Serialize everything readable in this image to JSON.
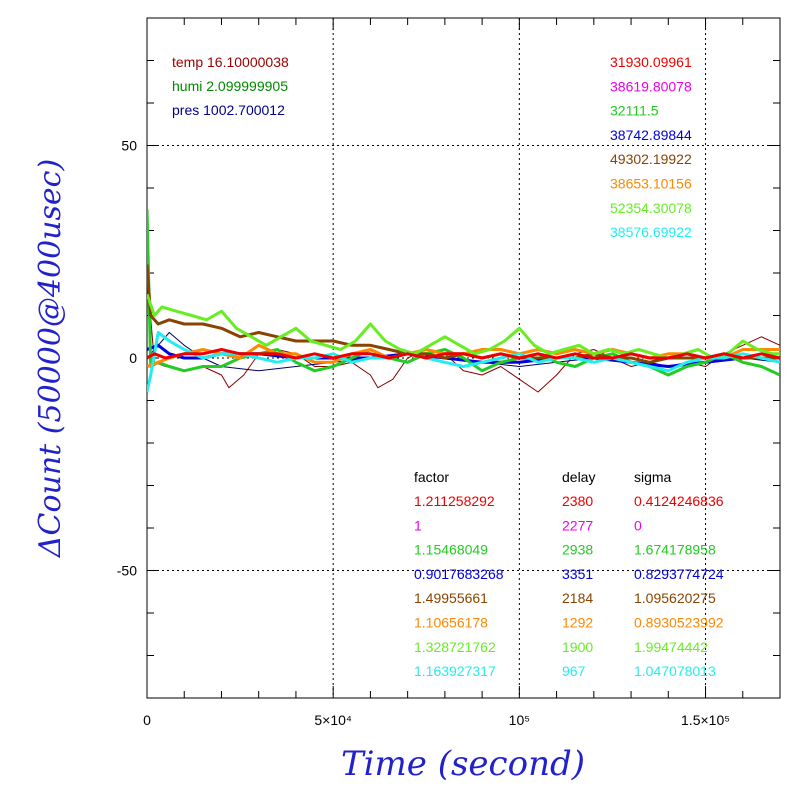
{
  "chart_data": {
    "type": "line",
    "xlabel": "Time (second)",
    "ylabel": "ΔCount (50000@400usec)",
    "xlim": [
      0,
      170000
    ],
    "ylim": [
      -80,
      80
    ],
    "grid": true,
    "x_ticks": [
      {
        "value": 0,
        "label": "0"
      },
      {
        "value": 50000,
        "label": "5×10⁴"
      },
      {
        "value": 100000,
        "label": "10⁵"
      },
      {
        "value": 150000,
        "label": "1.5×10⁵"
      }
    ],
    "y_ticks": [
      {
        "value": -50,
        "label": "-50"
      },
      {
        "value": 0,
        "label": "0"
      },
      {
        "value": 50,
        "label": "50"
      }
    ],
    "env_labels": [
      {
        "text": "temp 16.10000038",
        "color": "#990000"
      },
      {
        "text": "humi 2.099999905",
        "color": "#008800"
      },
      {
        "text": "pres 1002.700012",
        "color": "#000088"
      }
    ],
    "series_values": [
      {
        "text": "31930.09961",
        "color": "#ee0000"
      },
      {
        "text": "38619.80078",
        "color": "#ee00ee"
      },
      {
        "text": "32111.5",
        "color": "#22cc22"
      },
      {
        "text": "38742.89844",
        "color": "#0000dd"
      },
      {
        "text": "49302.19922",
        "color": "#884400"
      },
      {
        "text": "38653.10156",
        "color": "#ff8800"
      },
      {
        "text": "52354.30078",
        "color": "#66ee22"
      },
      {
        "text": "38576.69922",
        "color": "#22eeee"
      }
    ],
    "table": {
      "headers": [
        "factor",
        "delay",
        "sigma"
      ],
      "rows": [
        {
          "factor": "1.211258292",
          "delay": "2380",
          "sigma": "0.4124246836",
          "color": "#ee0000"
        },
        {
          "factor": "1",
          "delay": "2277",
          "sigma": "0",
          "color": "#ee00ee"
        },
        {
          "factor": "1.15468049",
          "delay": "2938",
          "sigma": "1.674178958",
          "color": "#22cc22"
        },
        {
          "factor": "0.9017683268",
          "delay": "3351",
          "sigma": "0.8293774724",
          "color": "#0000dd"
        },
        {
          "factor": "1.49955661",
          "delay": "2184",
          "sigma": "1.095620275",
          "color": "#884400"
        },
        {
          "factor": "1.10656178",
          "delay": "1292",
          "sigma": "0.8930523992",
          "color": "#ff8800"
        },
        {
          "factor": "1.328721762",
          "delay": "1900",
          "sigma": "1.99474442",
          "color": "#66ee22"
        },
        {
          "factor": "1.163927317",
          "delay": "967",
          "sigma": "1.047078013",
          "color": "#22eeee"
        }
      ]
    },
    "series": [
      {
        "color": "#880000",
        "width": 1,
        "x": [
          0,
          2000,
          5000,
          10000,
          15000,
          20000,
          22000,
          26000,
          30000,
          35000,
          40000,
          45000,
          50000,
          55000,
          60000,
          62000,
          66000,
          70000,
          75000,
          80000,
          85000,
          90000,
          95000,
          100000,
          105000,
          110000,
          115000,
          120000,
          125000,
          130000,
          135000,
          140000,
          145000,
          150000,
          155000,
          160000,
          165000,
          170000
        ],
        "y": [
          20,
          -1,
          -2,
          -3,
          -2,
          -4,
          -7,
          -4,
          1,
          2,
          1,
          -2,
          -2,
          -1,
          -4,
          -7,
          -5,
          0,
          2,
          1,
          -3,
          -4,
          -2,
          -5,
          -8,
          -4,
          1,
          2,
          0,
          -2,
          -1,
          -2,
          -1,
          -2,
          1,
          3,
          5,
          3
        ]
      },
      {
        "color": "#000066",
        "width": 1,
        "x": [
          0,
          3000,
          6000,
          10000,
          15000,
          20000,
          30000,
          40000,
          50000,
          60000,
          70000,
          80000,
          90000,
          100000,
          110000,
          120000,
          130000,
          140000,
          150000,
          160000,
          170000
        ],
        "y": [
          0,
          3,
          6,
          3,
          0,
          -2,
          -3,
          -2,
          -1,
          0,
          1,
          0,
          -1,
          -2,
          -1,
          0,
          -1,
          -2,
          -1,
          0,
          -1
        ]
      },
      {
        "color": "#0000dd",
        "width": 3,
        "x": [
          0,
          3000,
          6000,
          10000,
          15000,
          20000,
          30000,
          40000,
          50000,
          60000,
          70000,
          80000,
          90000,
          100000,
          110000,
          120000,
          130000,
          140000,
          150000,
          160000,
          170000
        ],
        "y": [
          2,
          3,
          1,
          0,
          0,
          1,
          1,
          0,
          0,
          0,
          1,
          0,
          -1,
          -1,
          0,
          0,
          -1,
          -2,
          -1,
          0,
          0
        ]
      },
      {
        "color": "#22cc22",
        "width": 3,
        "x": [
          0,
          1000,
          3000,
          6000,
          10000,
          15000,
          20000,
          25000,
          30000,
          35000,
          40000,
          45000,
          50000,
          55000,
          60000,
          65000,
          70000,
          75000,
          80000,
          85000,
          90000,
          95000,
          100000,
          105000,
          110000,
          115000,
          120000,
          125000,
          130000,
          135000,
          140000,
          145000,
          150000,
          155000,
          160000,
          165000,
          170000
        ],
        "y": [
          35,
          -2,
          -1,
          -2,
          -3,
          -2,
          -2,
          0,
          1,
          2,
          -1,
          -3,
          -2,
          0,
          2,
          0,
          -1,
          1,
          2,
          0,
          -3,
          -1,
          0,
          1,
          -1,
          -2,
          0,
          1,
          -1,
          -2,
          -4,
          -2,
          -1,
          1,
          -1,
          -2,
          -4
        ]
      },
      {
        "color": "#884400",
        "width": 3,
        "x": [
          0,
          1000,
          3000,
          6000,
          10000,
          15000,
          20000,
          25000,
          30000,
          35000,
          40000,
          45000,
          50000,
          55000,
          60000,
          65000,
          70000,
          75000,
          80000,
          85000,
          90000,
          95000,
          100000,
          105000,
          110000,
          115000,
          120000,
          125000,
          130000,
          135000,
          140000,
          145000,
          150000,
          155000,
          160000,
          165000,
          170000
        ],
        "y": [
          22,
          10,
          8,
          9,
          8,
          8,
          7,
          5,
          6,
          5,
          4,
          4,
          4,
          3,
          3,
          2,
          1,
          1,
          0,
          1,
          0,
          1,
          0,
          0,
          0,
          0,
          1,
          0,
          0,
          -1,
          0,
          0,
          0,
          1,
          0,
          0,
          0
        ]
      },
      {
        "color": "#ff8800",
        "width": 3,
        "x": [
          0,
          3000,
          6000,
          10000,
          15000,
          20000,
          25000,
          30000,
          35000,
          40000,
          45000,
          50000,
          55000,
          60000,
          65000,
          70000,
          75000,
          80000,
          85000,
          90000,
          95000,
          100000,
          105000,
          110000,
          115000,
          120000,
          125000,
          130000,
          135000,
          140000,
          145000,
          150000,
          155000,
          160000,
          165000,
          170000
        ],
        "y": [
          -2,
          -1,
          0,
          1,
          2,
          1,
          0,
          3,
          1,
          1,
          -1,
          -1,
          1,
          2,
          0,
          1,
          2,
          1,
          1,
          2,
          2,
          1,
          2,
          1,
          2,
          1,
          2,
          1,
          0,
          1,
          1,
          0,
          0,
          2,
          2,
          2
        ]
      },
      {
        "color": "#66ee22",
        "width": 3,
        "x": [
          0,
          2000,
          4000,
          8000,
          12000,
          16000,
          20000,
          24000,
          28000,
          32000,
          36000,
          40000,
          44000,
          48000,
          52000,
          56000,
          60000,
          64000,
          68000,
          72000,
          76000,
          80000,
          84000,
          88000,
          92000,
          96000,
          100000,
          104000,
          108000,
          112000,
          116000,
          120000,
          124000,
          128000,
          132000,
          136000,
          140000,
          144000,
          148000,
          152000,
          156000,
          160000,
          164000,
          168000,
          170000
        ],
        "y": [
          15,
          10,
          12,
          11,
          10,
          9,
          11,
          7,
          5,
          3,
          5,
          7,
          4,
          3,
          2,
          4,
          8,
          4,
          2,
          1,
          3,
          5,
          3,
          1,
          2,
          4,
          7,
          3,
          1,
          2,
          3,
          1,
          2,
          1,
          2,
          1,
          0,
          1,
          2,
          0,
          1,
          4,
          2,
          1,
          1
        ]
      },
      {
        "color": "#22eeee",
        "width": 3,
        "x": [
          0,
          1000,
          3000,
          6000,
          10000,
          15000,
          20000,
          25000,
          30000,
          35000,
          40000,
          45000,
          50000,
          55000,
          60000,
          65000,
          70000,
          75000,
          80000,
          85000,
          90000,
          95000,
          100000,
          105000,
          110000,
          115000,
          120000,
          125000,
          130000,
          135000,
          140000,
          145000,
          150000,
          155000,
          160000,
          165000,
          170000
        ],
        "y": [
          -8,
          -4,
          6,
          4,
          2,
          0,
          1,
          1,
          0,
          -1,
          0,
          0,
          1,
          -1,
          0,
          0,
          1,
          0,
          -1,
          -2,
          -1,
          0,
          1,
          -1,
          0,
          0,
          -1,
          0,
          -1,
          -2,
          -3,
          -1,
          0,
          0,
          1,
          0,
          -1
        ]
      },
      {
        "color": "#ee0000",
        "width": 3,
        "x": [
          0,
          2000,
          5000,
          10000,
          15000,
          20000,
          25000,
          30000,
          35000,
          40000,
          45000,
          50000,
          55000,
          60000,
          65000,
          70000,
          75000,
          80000,
          85000,
          90000,
          95000,
          100000,
          105000,
          110000,
          115000,
          120000,
          125000,
          130000,
          135000,
          140000,
          145000,
          150000,
          155000,
          160000,
          165000,
          170000
        ],
        "y": [
          0,
          1,
          0,
          1,
          1,
          2,
          1,
          1,
          1,
          0,
          1,
          0,
          1,
          1,
          0,
          1,
          0,
          1,
          1,
          0,
          1,
          0,
          1,
          0,
          1,
          0,
          0,
          1,
          0,
          0,
          1,
          0,
          1,
          0,
          1,
          0
        ]
      }
    ]
  }
}
